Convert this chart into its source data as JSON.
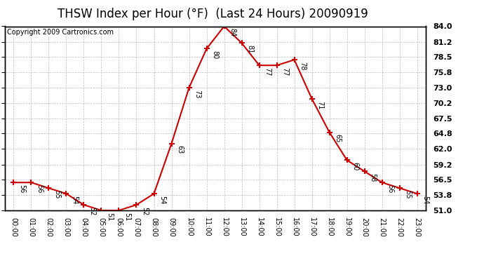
{
  "title": "THSW Index per Hour (°F)  (Last 24 Hours) 20090919",
  "copyright": "Copyright 2009 Cartronics.com",
  "hours": [
    "00:00",
    "01:00",
    "02:00",
    "03:00",
    "04:00",
    "05:00",
    "06:00",
    "07:00",
    "08:00",
    "09:00",
    "10:00",
    "11:00",
    "12:00",
    "13:00",
    "14:00",
    "15:00",
    "16:00",
    "17:00",
    "18:00",
    "19:00",
    "20:00",
    "21:00",
    "22:00",
    "23:00"
  ],
  "values": [
    56,
    56,
    55,
    54,
    52,
    51,
    51,
    52,
    54,
    63,
    73,
    80,
    84,
    81,
    77,
    77,
    78,
    71,
    65,
    60,
    58,
    56,
    55,
    54
  ],
  "ylim_min": 51.0,
  "ylim_max": 84.0,
  "yticks": [
    51.0,
    53.8,
    56.5,
    59.2,
    62.0,
    64.8,
    67.5,
    70.2,
    73.0,
    75.8,
    78.5,
    81.2,
    84.0
  ],
  "line_color": "#cc0000",
  "marker_color": "#cc0000",
  "bg_color": "#ffffff",
  "grid_color": "#bbbbbb",
  "title_fontsize": 12,
  "copyright_fontsize": 7,
  "label_fontsize": 7
}
